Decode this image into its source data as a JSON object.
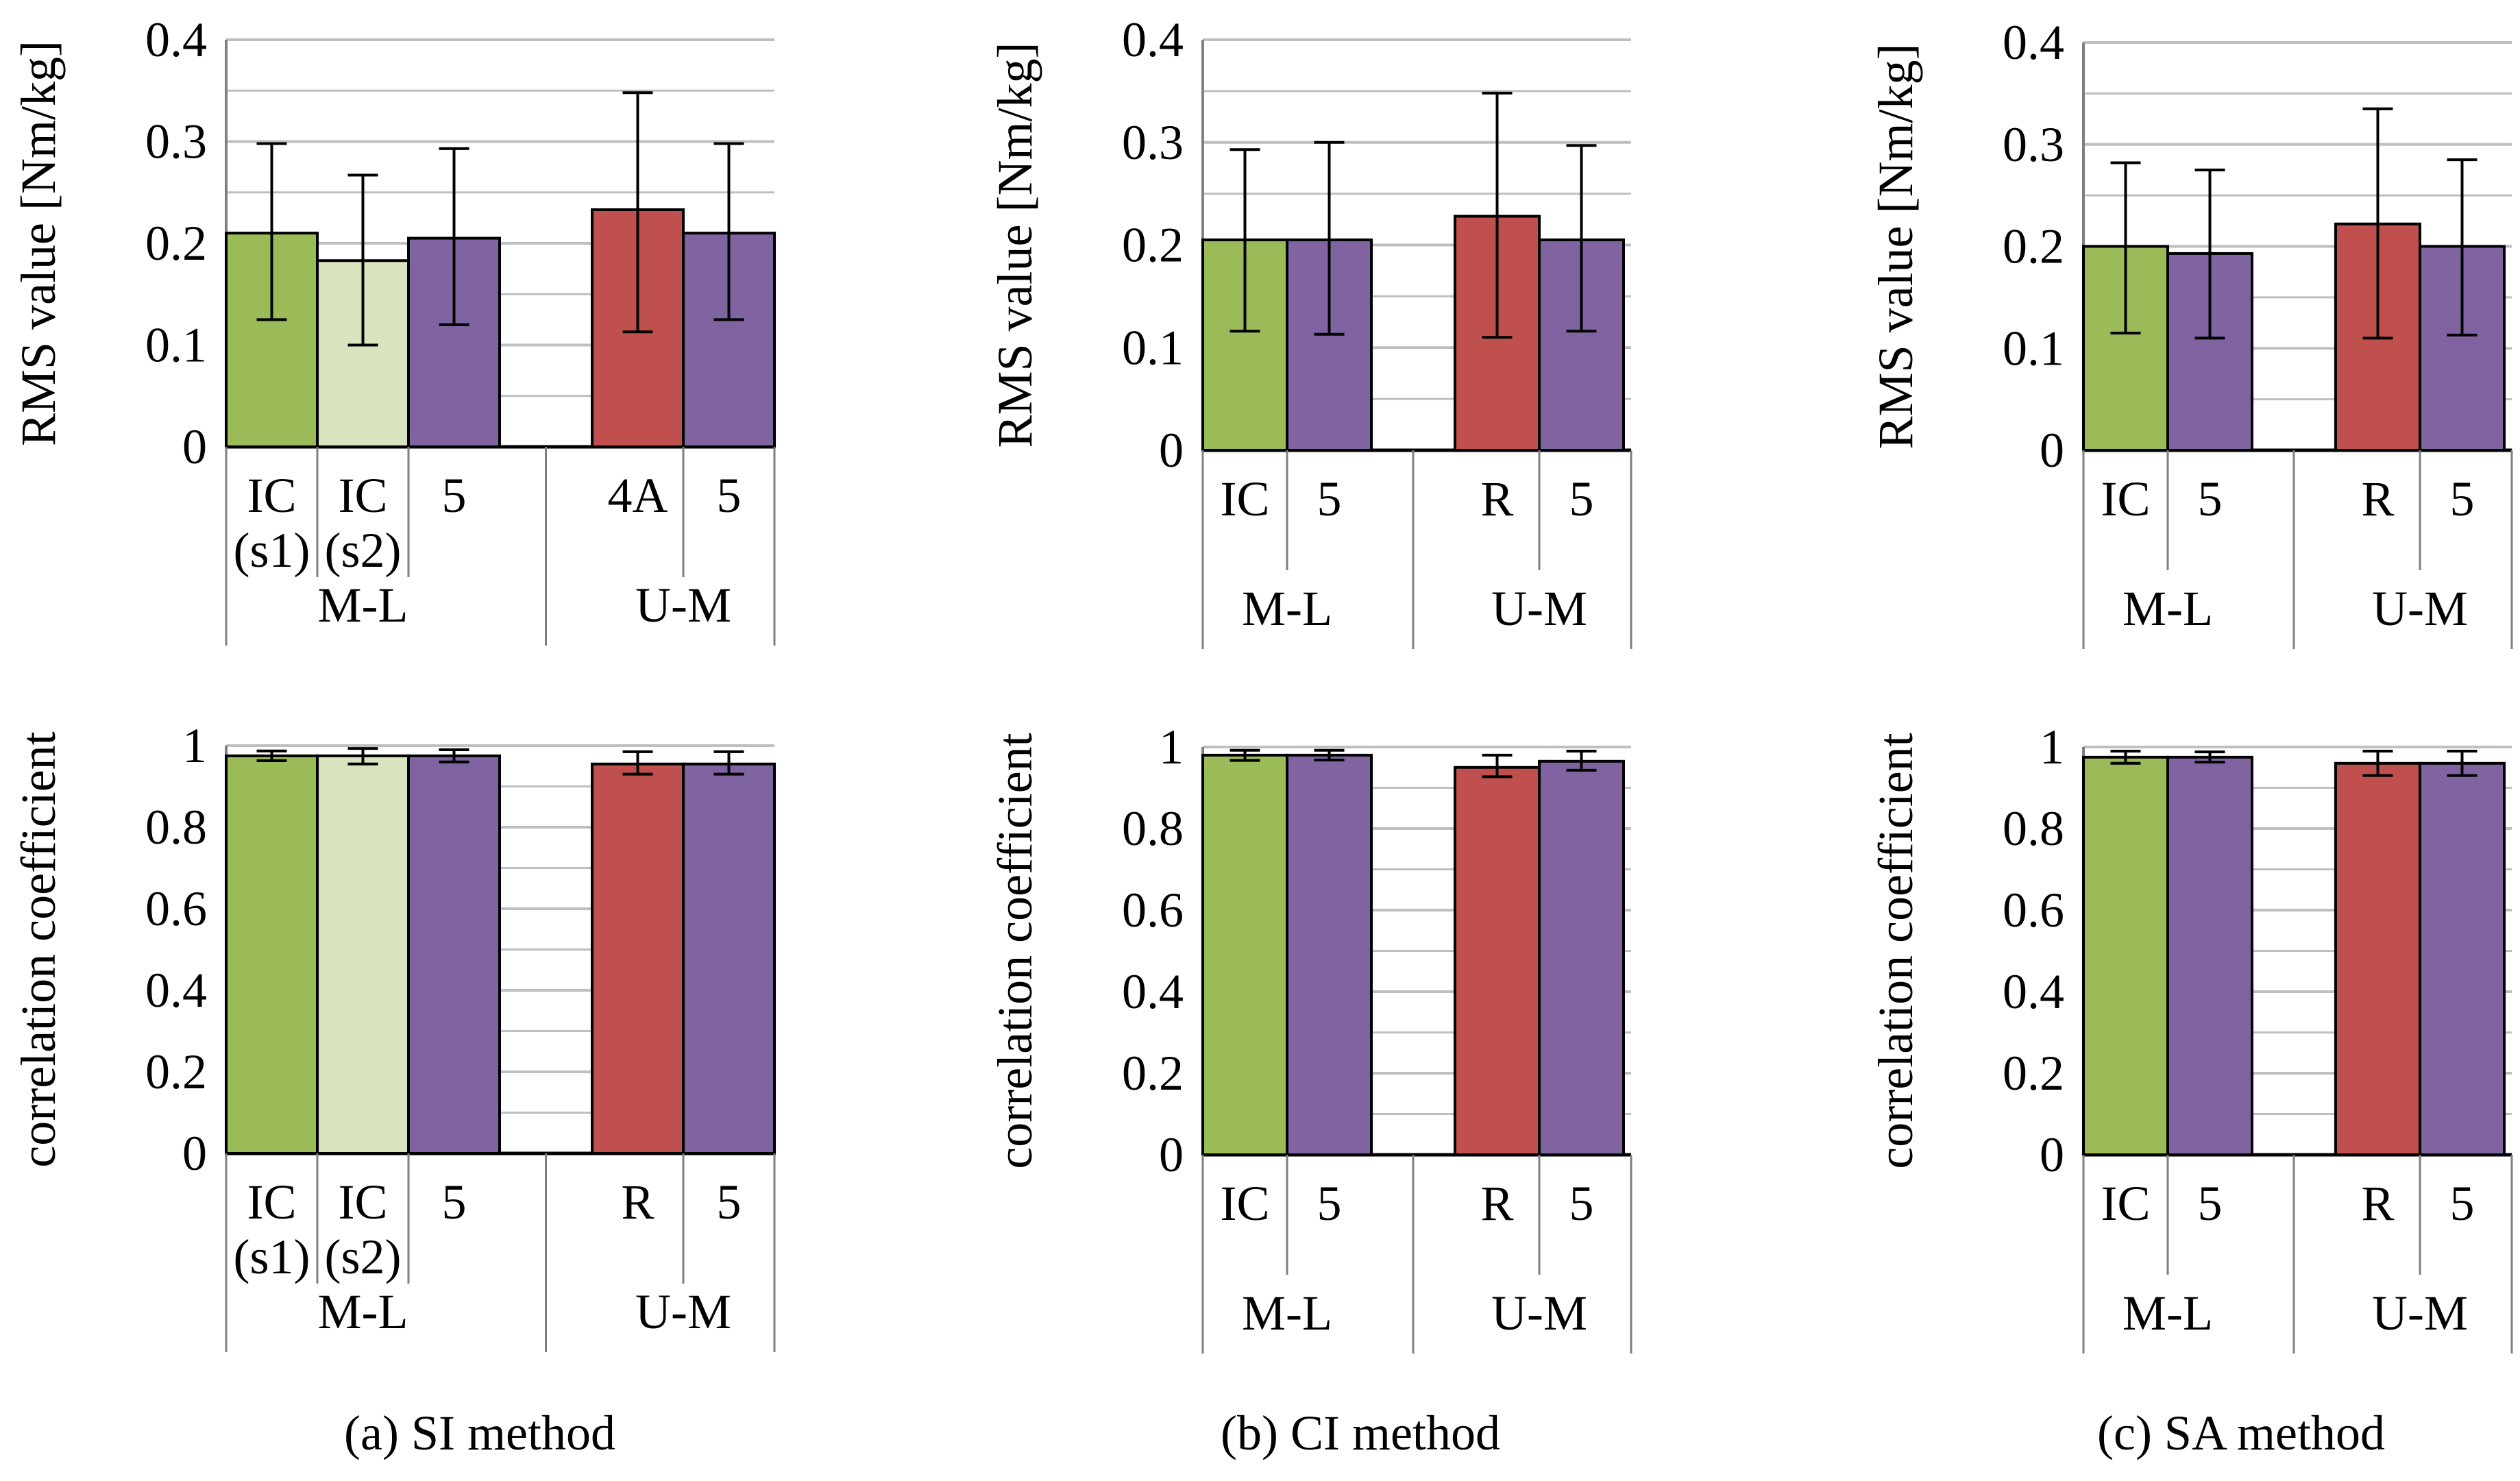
{
  "colors": {
    "green": "#9BBB59",
    "light_green": "#D7E4BD",
    "purple": "#8064A2",
    "red": "#C0504D",
    "grid": "#bfbfbf",
    "axis": "#7f7f7f"
  },
  "panel_captions": [
    "(a) SI method",
    "(b) CI method",
    "(c) SA method"
  ],
  "chart_data": [
    {
      "id": "si-rms",
      "type": "bar",
      "ylabel": "RMS value [Nm/kg]",
      "ylim": [
        0,
        0.4
      ],
      "yticks": [
        "0",
        "0.1",
        "0.2",
        "0.3",
        "0.4"
      ],
      "bars": [
        {
          "label": [
            "IC",
            "(s1)"
          ],
          "group": "M-L",
          "value": 0.21,
          "err_low": 0.125,
          "err_high": 0.298,
          "color": "green"
        },
        {
          "label": [
            "IC",
            "(s2)"
          ],
          "group": "M-L",
          "value": 0.183,
          "err_low": 0.1,
          "err_high": 0.267,
          "color": "light_green"
        },
        {
          "label": [
            "5"
          ],
          "group": "M-L",
          "value": 0.205,
          "err_low": 0.12,
          "err_high": 0.293,
          "color": "purple"
        },
        {
          "label": [
            "4A"
          ],
          "group": "U-M",
          "value": 0.233,
          "err_low": 0.113,
          "err_high": 0.348,
          "color": "red"
        },
        {
          "label": [
            "5"
          ],
          "group": "U-M",
          "value": 0.21,
          "err_low": 0.125,
          "err_high": 0.298,
          "color": "purple"
        }
      ],
      "groups": [
        "M-L",
        "U-M"
      ]
    },
    {
      "id": "ci-rms",
      "type": "bar",
      "ylabel": "RMS value [Nm/kg]",
      "ylim": [
        0,
        0.4
      ],
      "yticks": [
        "0",
        "0.1",
        "0.2",
        "0.3",
        "0.4"
      ],
      "bars": [
        {
          "label": [
            "IC"
          ],
          "group": "M-L",
          "value": 0.205,
          "err_low": 0.116,
          "err_high": 0.293,
          "color": "green"
        },
        {
          "label": [
            "5"
          ],
          "group": "M-L",
          "value": 0.205,
          "err_low": 0.113,
          "err_high": 0.3,
          "color": "purple"
        },
        {
          "label": [
            "R"
          ],
          "group": "U-M",
          "value": 0.228,
          "err_low": 0.11,
          "err_high": 0.348,
          "color": "red"
        },
        {
          "label": [
            "5"
          ],
          "group": "U-M",
          "value": 0.205,
          "err_low": 0.116,
          "err_high": 0.297,
          "color": "purple"
        }
      ],
      "groups": [
        "M-L",
        "U-M"
      ]
    },
    {
      "id": "sa-rms",
      "type": "bar",
      "ylabel": "RMS value [Nm/kg]",
      "ylim": [
        0,
        0.4
      ],
      "yticks": [
        "0",
        "0.1",
        "0.2",
        "0.3",
        "0.4"
      ],
      "bars": [
        {
          "label": [
            "IC"
          ],
          "group": "M-L",
          "value": 0.2,
          "err_low": 0.115,
          "err_high": 0.282,
          "color": "green"
        },
        {
          "label": [
            "5"
          ],
          "group": "M-L",
          "value": 0.193,
          "err_low": 0.11,
          "err_high": 0.275,
          "color": "purple"
        },
        {
          "label": [
            "R"
          ],
          "group": "U-M",
          "value": 0.222,
          "err_low": 0.11,
          "err_high": 0.335,
          "color": "red"
        },
        {
          "label": [
            "5"
          ],
          "group": "U-M",
          "value": 0.2,
          "err_low": 0.113,
          "err_high": 0.285,
          "color": "purple"
        }
      ],
      "groups": [
        "M-L",
        "U-M"
      ]
    },
    {
      "id": "si-corr",
      "type": "bar",
      "ylabel": "correlation coefficient",
      "ylim": [
        0,
        1
      ],
      "yticks": [
        "0",
        "0.2",
        "0.4",
        "0.6",
        "0.8",
        "1"
      ],
      "bars": [
        {
          "label": [
            "IC",
            "(s1)"
          ],
          "group": "M-L",
          "value": 0.975,
          "err_low": 0.963,
          "err_high": 0.987,
          "color": "green"
        },
        {
          "label": [
            "IC",
            "(s2)"
          ],
          "group": "M-L",
          "value": 0.975,
          "err_low": 0.955,
          "err_high": 0.993,
          "color": "light_green"
        },
        {
          "label": [
            "5"
          ],
          "group": "M-L",
          "value": 0.975,
          "err_low": 0.96,
          "err_high": 0.99,
          "color": "purple"
        },
        {
          "label": [
            "R"
          ],
          "group": "U-M",
          "value": 0.955,
          "err_low": 0.93,
          "err_high": 0.985,
          "color": "red"
        },
        {
          "label": [
            "5"
          ],
          "group": "U-M",
          "value": 0.955,
          "err_low": 0.93,
          "err_high": 0.985,
          "color": "purple"
        }
      ],
      "groups": [
        "M-L",
        "U-M"
      ]
    },
    {
      "id": "ci-corr",
      "type": "bar",
      "ylabel": "correlation coefficient",
      "ylim": [
        0,
        1
      ],
      "yticks": [
        "0",
        "0.2",
        "0.4",
        "0.6",
        "0.8",
        "1"
      ],
      "bars": [
        {
          "label": [
            "IC"
          ],
          "group": "M-L",
          "value": 0.98,
          "err_low": 0.967,
          "err_high": 0.992,
          "color": "green"
        },
        {
          "label": [
            "5"
          ],
          "group": "M-L",
          "value": 0.98,
          "err_low": 0.968,
          "err_high": 0.992,
          "color": "purple"
        },
        {
          "label": [
            "R"
          ],
          "group": "U-M",
          "value": 0.95,
          "err_low": 0.927,
          "err_high": 0.98,
          "color": "red"
        },
        {
          "label": [
            "5"
          ],
          "group": "U-M",
          "value": 0.965,
          "err_low": 0.943,
          "err_high": 0.99,
          "color": "purple"
        }
      ],
      "groups": [
        "M-L",
        "U-M"
      ]
    },
    {
      "id": "sa-corr",
      "type": "bar",
      "ylabel": "correlation coefficient",
      "ylim": [
        0,
        1
      ],
      "yticks": [
        "0",
        "0.2",
        "0.4",
        "0.6",
        "0.8",
        "1"
      ],
      "bars": [
        {
          "label": [
            "IC"
          ],
          "group": "M-L",
          "value": 0.975,
          "err_low": 0.96,
          "err_high": 0.99,
          "color": "green"
        },
        {
          "label": [
            "5"
          ],
          "group": "M-L",
          "value": 0.975,
          "err_low": 0.963,
          "err_high": 0.988,
          "color": "purple"
        },
        {
          "label": [
            "R"
          ],
          "group": "U-M",
          "value": 0.96,
          "err_low": 0.93,
          "err_high": 0.99,
          "color": "red"
        },
        {
          "label": [
            "5"
          ],
          "group": "U-M",
          "value": 0.96,
          "err_low": 0.93,
          "err_high": 0.99,
          "color": "purple"
        }
      ],
      "groups": [
        "M-L",
        "U-M"
      ]
    }
  ]
}
